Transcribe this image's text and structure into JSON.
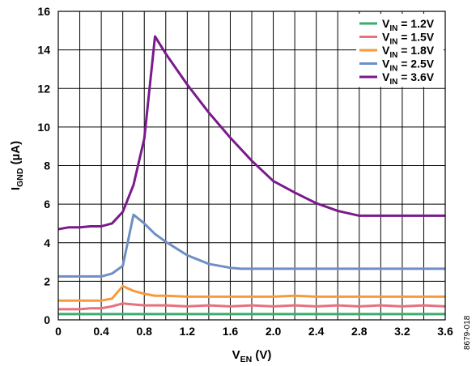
{
  "chart_data": {
    "type": "line",
    "xlabel": {
      "main": "V",
      "sub": "EN",
      "rest": " (V)"
    },
    "ylabel": {
      "main": "I",
      "sub": "GND",
      "rest": " (µA)"
    },
    "xlim": [
      0,
      3.6
    ],
    "ylim": [
      0,
      16
    ],
    "xticks": [
      0,
      0.4,
      0.8,
      1.2,
      1.6,
      2.0,
      2.4,
      2.8,
      3.2,
      3.6
    ],
    "xtick_labels": [
      "0",
      "0.4",
      "0.8",
      "1.2",
      "1.6",
      "2.0",
      "2.4",
      "2.8",
      "3.2",
      "3.6"
    ],
    "yticks": [
      0,
      2,
      4,
      6,
      8,
      10,
      12,
      14,
      16
    ],
    "ytick_labels": [
      "0",
      "2",
      "4",
      "6",
      "8",
      "10",
      "12",
      "14",
      "16"
    ],
    "xminor_step": 0.2,
    "grid": true,
    "legend_position": "top-right",
    "series": [
      {
        "name": "V_IN = 1.2V",
        "label_main": "V",
        "label_sub": "IN",
        "label_rest": " = 1.2V",
        "color": "#3daa6e",
        "x": [
          0,
          0.4,
          0.5,
          0.6,
          0.7,
          0.8,
          1.0,
          1.2,
          1.6,
          2.0,
          2.4,
          2.8,
          3.2,
          3.6
        ],
        "y": [
          0.3,
          0.3,
          0.3,
          0.3,
          0.3,
          0.3,
          0.3,
          0.3,
          0.3,
          0.3,
          0.3,
          0.3,
          0.3,
          0.3
        ]
      },
      {
        "name": "V_IN = 1.5V",
        "label_main": "V",
        "label_sub": "IN",
        "label_rest": " = 1.5V",
        "color": "#e8717d",
        "x": [
          0,
          0.2,
          0.3,
          0.4,
          0.5,
          0.6,
          0.7,
          0.8,
          1.0,
          1.2,
          1.4,
          1.6,
          1.8,
          2.0,
          2.2,
          2.4,
          2.6,
          2.8,
          3.0,
          3.2,
          3.4,
          3.6
        ],
        "y": [
          0.55,
          0.55,
          0.6,
          0.6,
          0.7,
          0.85,
          0.8,
          0.75,
          0.75,
          0.7,
          0.75,
          0.7,
          0.75,
          0.7,
          0.75,
          0.7,
          0.75,
          0.7,
          0.75,
          0.7,
          0.75,
          0.7
        ]
      },
      {
        "name": "V_IN = 1.8V",
        "label_main": "V",
        "label_sub": "IN",
        "label_rest": " = 1.8V",
        "color": "#f79a3e",
        "x": [
          0,
          0.4,
          0.5,
          0.6,
          0.7,
          0.8,
          0.9,
          1.0,
          1.2,
          1.6,
          2.0,
          2.2,
          2.4,
          2.8,
          3.2,
          3.6
        ],
        "y": [
          1.0,
          1.0,
          1.1,
          1.75,
          1.5,
          1.35,
          1.25,
          1.25,
          1.2,
          1.2,
          1.2,
          1.25,
          1.2,
          1.2,
          1.2,
          1.2
        ]
      },
      {
        "name": "V_IN = 2.5V",
        "label_main": "V",
        "label_sub": "IN",
        "label_rest": " = 2.5V",
        "color": "#6f8fc4",
        "x": [
          0,
          0.4,
          0.5,
          0.6,
          0.7,
          0.8,
          0.9,
          1.0,
          1.2,
          1.4,
          1.6,
          1.7,
          2.0,
          2.4,
          2.8,
          3.2,
          3.6
        ],
        "y": [
          2.25,
          2.25,
          2.4,
          2.8,
          5.45,
          5.0,
          4.45,
          4.05,
          3.35,
          2.9,
          2.7,
          2.65,
          2.65,
          2.65,
          2.65,
          2.65,
          2.65
        ]
      },
      {
        "name": "V_IN = 3.6V",
        "label_main": "V",
        "label_sub": "IN",
        "label_rest": " = 3.6V",
        "color": "#7a1a8c",
        "x": [
          0,
          0.1,
          0.2,
          0.3,
          0.4,
          0.5,
          0.6,
          0.7,
          0.8,
          0.9,
          1.0,
          1.2,
          1.4,
          1.6,
          1.8,
          2.0,
          2.2,
          2.4,
          2.6,
          2.8,
          3.2,
          3.6
        ],
        "y": [
          4.7,
          4.8,
          4.8,
          4.85,
          4.85,
          5.0,
          5.6,
          7.0,
          9.4,
          14.7,
          13.8,
          12.2,
          10.75,
          9.45,
          8.25,
          7.2,
          6.6,
          6.05,
          5.65,
          5.4,
          5.4,
          5.4
        ]
      }
    ]
  },
  "figure_id": "8679-018"
}
